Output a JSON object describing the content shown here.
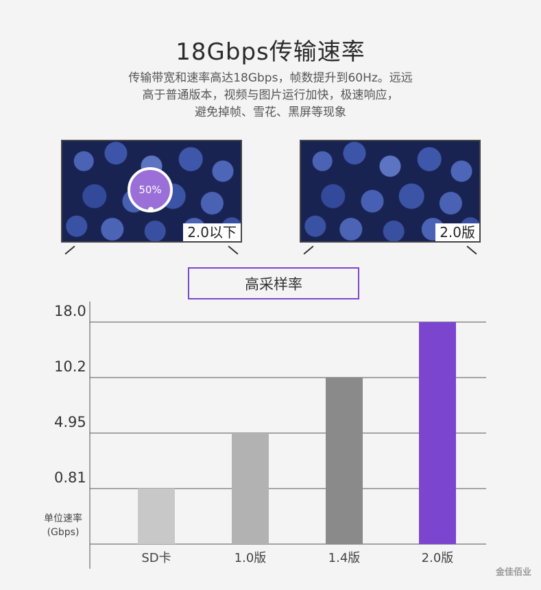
{
  "header": {
    "title": "18Gbps传输速率",
    "subtitle_lines": [
      "传输带宽和速率高达18Gbps，帧数提升到60Hz。远远",
      "高于普通版本，视频与图片运行加快，极速响应，",
      "避免掉帧、雪花、黑屏等现象"
    ]
  },
  "comparison": {
    "left": {
      "label": "2.0以下",
      "loading_text": "50%",
      "loading_progress": 0.5
    },
    "right": {
      "label": "2.0版"
    }
  },
  "section_label": "高采样率",
  "chart_data": {
    "type": "bar",
    "categories": [
      "SD卡",
      "1.0版",
      "1.4版",
      "2.0版"
    ],
    "values": [
      0.81,
      4.95,
      10.2,
      18.0
    ],
    "ytick_labels": [
      "0.81",
      "4.95",
      "10.2",
      "18.0"
    ],
    "ylabel_lines": [
      "单位速率",
      "(Gbps)"
    ],
    "colors": [
      "#c8c8c8",
      "#b2b2b2",
      "#8a8a8a",
      "#7b45cf"
    ],
    "grid": true
  },
  "brand": "金佳佰业"
}
